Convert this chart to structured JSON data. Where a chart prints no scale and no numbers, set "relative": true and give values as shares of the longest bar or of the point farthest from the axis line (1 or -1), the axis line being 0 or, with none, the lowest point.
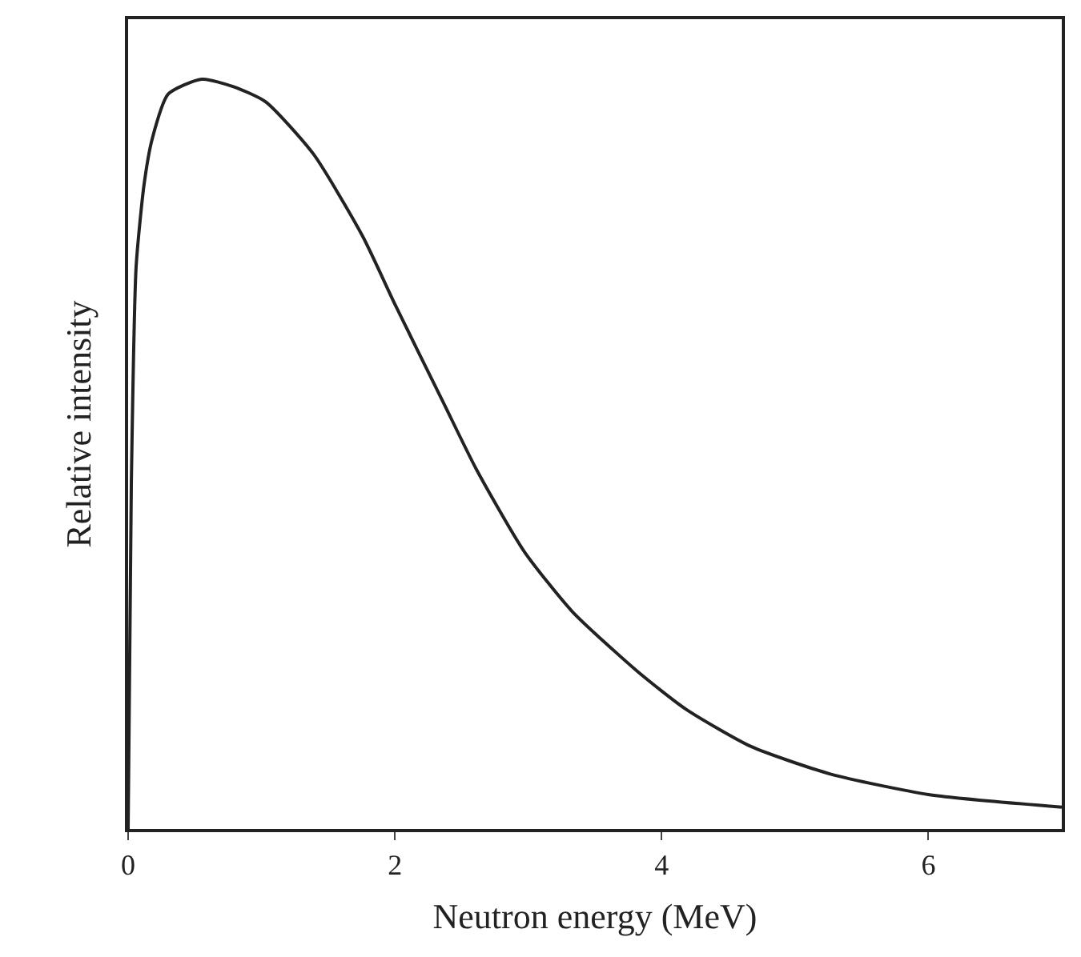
{
  "chart_data": {
    "type": "line",
    "xlabel": "Neutron energy (MeV)",
    "ylabel": "Relative intensity",
    "relative": true,
    "xlim": [
      0,
      7
    ],
    "xticks": [
      0,
      2,
      4,
      6
    ],
    "legend": false,
    "marker": "none",
    "line_style": "solid",
    "series": [
      {
        "color": "#222222",
        "x": [
          0,
          0.024,
          0.06,
          0.12,
          0.18,
          0.3,
          0.55,
          0.79,
          1.03,
          1.39,
          1.76,
          2.0,
          2.36,
          2.61,
          2.97,
          3.33,
          3.82,
          4.18,
          4.67,
          5.27,
          6.0,
          7.0
        ],
        "values": [
          0,
          0.46,
          0.75,
          0.86,
          0.92,
          0.98,
          1.0,
          0.99,
          0.97,
          0.9,
          0.79,
          0.7,
          0.57,
          0.48,
          0.37,
          0.29,
          0.21,
          0.16,
          0.11,
          0.073,
          0.046,
          0.029
        ]
      }
    ]
  }
}
